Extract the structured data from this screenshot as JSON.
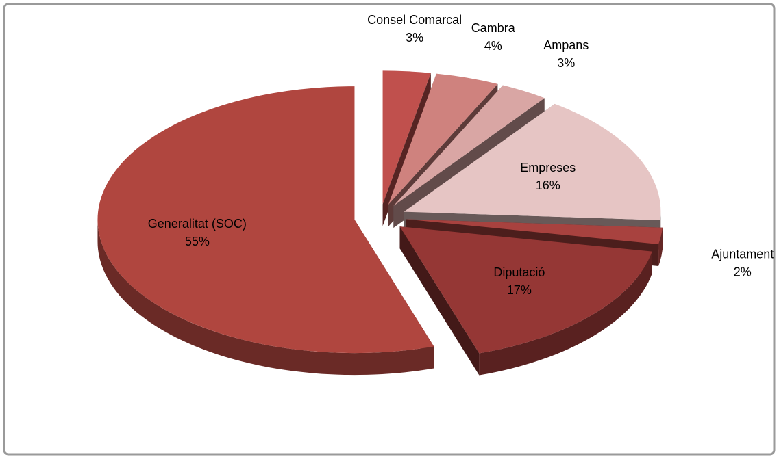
{
  "chart_data": {
    "type": "pie",
    "categories": [
      "Consel Comarcal",
      "Cambra",
      "Ampans",
      "Empreses",
      "Ajuntament",
      "Diputació",
      "Generalitat (SOC)"
    ],
    "values": [
      3,
      4,
      3,
      16,
      2,
      17,
      55
    ],
    "value_labels": [
      "3%",
      "4%",
      "3%",
      "16%",
      "2%",
      "17%",
      "55%"
    ],
    "colors": [
      "#c0504d",
      "#cf827e",
      "#d9a6a4",
      "#e6c5c4",
      "#a8423f",
      "#953735",
      "#b0463f"
    ]
  }
}
